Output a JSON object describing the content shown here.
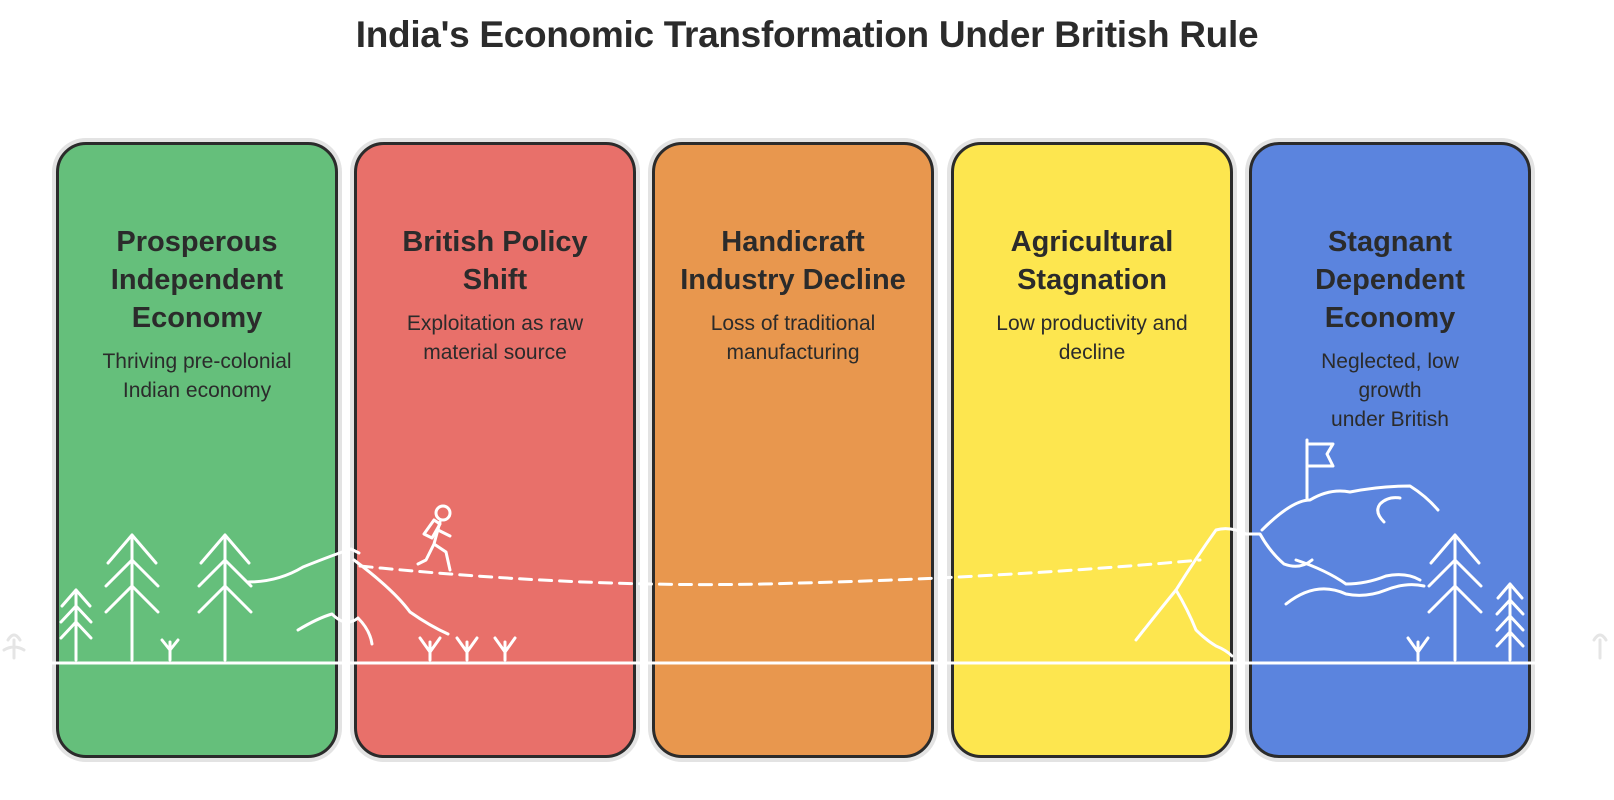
{
  "title": "India's Economic Transformation Under British Rule",
  "stages": [
    {
      "heading": [
        "Prosperous",
        "Independent",
        "Economy"
      ],
      "description": [
        "Thriving pre-colonial",
        "Indian economy"
      ],
      "color": "#65bf7b"
    },
    {
      "heading": [
        "British Policy",
        "Shift"
      ],
      "description": [
        "Exploitation as raw",
        "material source"
      ],
      "color": "#e8706a"
    },
    {
      "heading": [
        "Handicraft",
        "Industry Decline"
      ],
      "description": [
        "Loss of traditional",
        "manufacturing"
      ],
      "color": "#e8974e"
    },
    {
      "heading": [
        "Agricultural",
        "Stagnation"
      ],
      "description": [
        "Low productivity and",
        "decline"
      ],
      "color": "#fde64f"
    },
    {
      "heading": [
        "Stagnant",
        "Dependent",
        "Economy"
      ],
      "description": [
        "Neglected, low growth",
        "under British"
      ],
      "color": "#5b84de"
    }
  ],
  "icons": {
    "landscape": "mountain-path-scene",
    "hiker": "hiker-icon",
    "flag": "flag-icon",
    "trees": "pine-tree-icon"
  }
}
